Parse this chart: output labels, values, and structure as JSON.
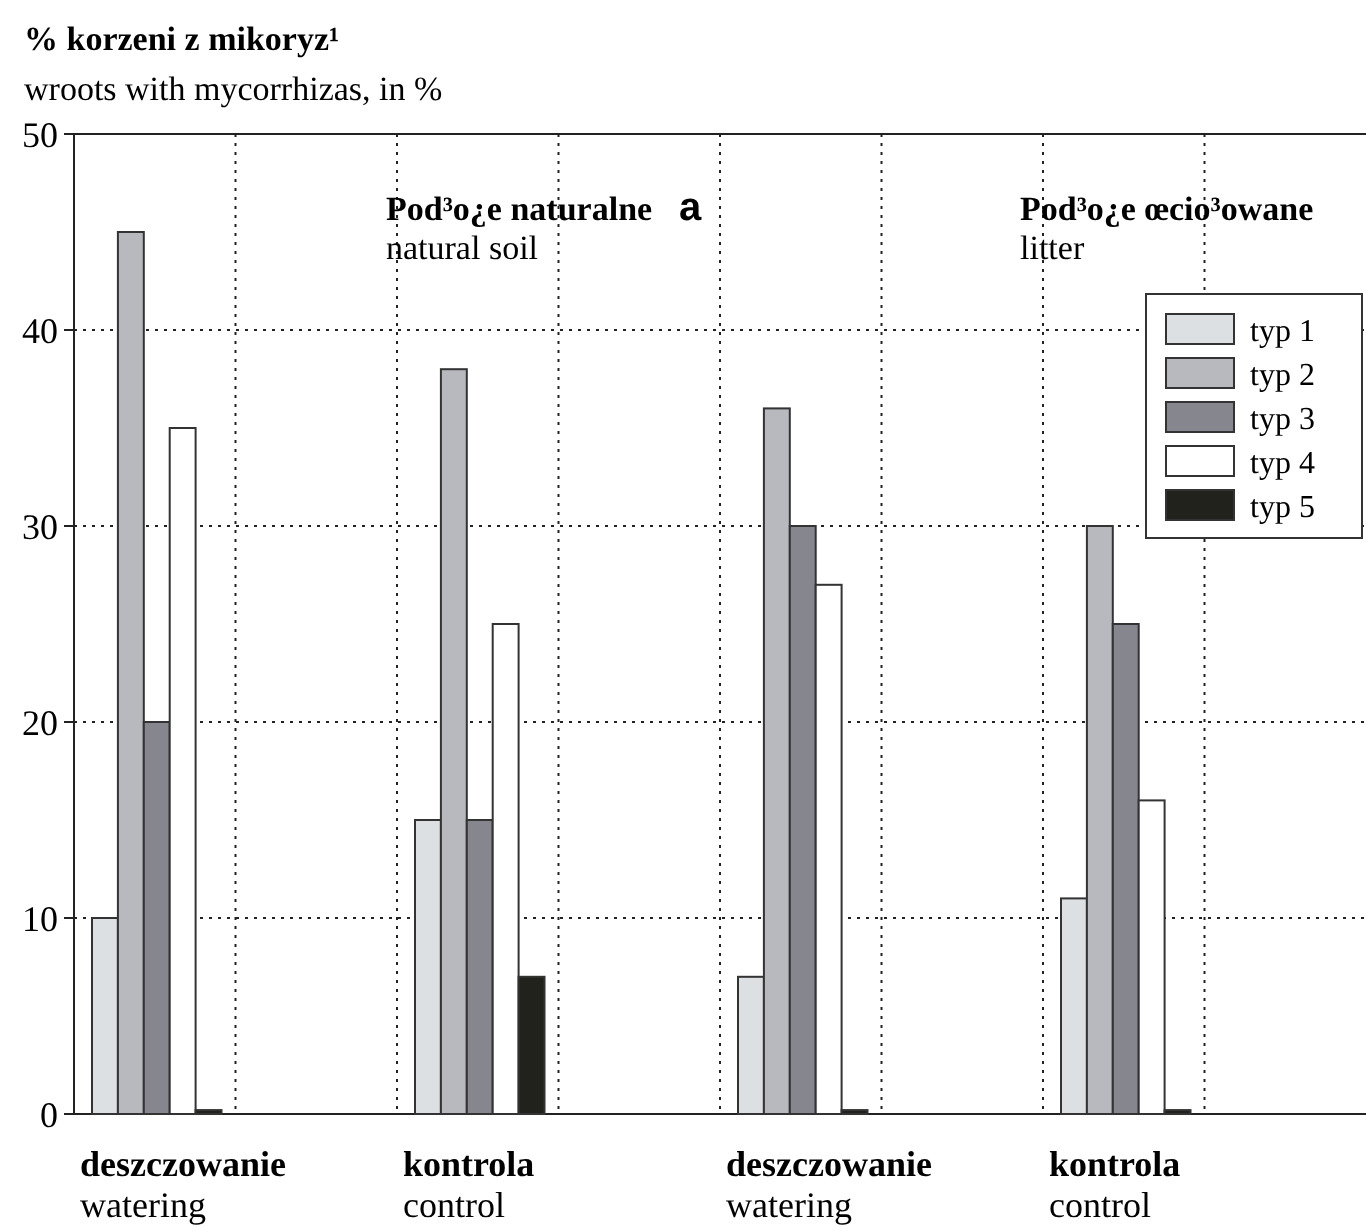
{
  "chart_data": {
    "type": "bar",
    "title": "% korzeni z mikoryz¹",
    "subtitle": "wroots with mycorrhizas, in %",
    "annotations": [
      "Pod³o¿e naturalne\nnatural soil",
      "a",
      "Pod³o¿e œcio³owane\nlitter"
    ],
    "categories": [
      "deszczowanie\nwatering",
      null,
      "kontrola\ncontrol",
      null,
      "deszczowanie\nwatering",
      null,
      "kontrola\ncontrol",
      null
    ],
    "series": [
      {
        "name": "typ 1",
        "color": "#dde0e3",
        "values": [
          10,
          null,
          15,
          null,
          7,
          null,
          11,
          null
        ]
      },
      {
        "name": "typ 2",
        "color": "#b8b9be",
        "values": [
          45,
          null,
          38,
          null,
          36,
          null,
          30,
          null
        ]
      },
      {
        "name": "typ 3",
        "color": "#86868f",
        "values": [
          20,
          null,
          15,
          null,
          30,
          null,
          25,
          null
        ]
      },
      {
        "name": "typ 4",
        "color": "#ffffff",
        "values": [
          35,
          null,
          25,
          null,
          27,
          null,
          16,
          null
        ]
      },
      {
        "name": "typ 5",
        "color": "#22221c",
        "values": [
          0.2,
          null,
          7,
          null,
          0.2,
          null,
          0.2,
          null
        ]
      }
    ],
    "ylim": [
      0,
      50
    ],
    "yticks": [
      0,
      10,
      20,
      30,
      40,
      50
    ],
    "grid": true,
    "legend": "top right"
  }
}
